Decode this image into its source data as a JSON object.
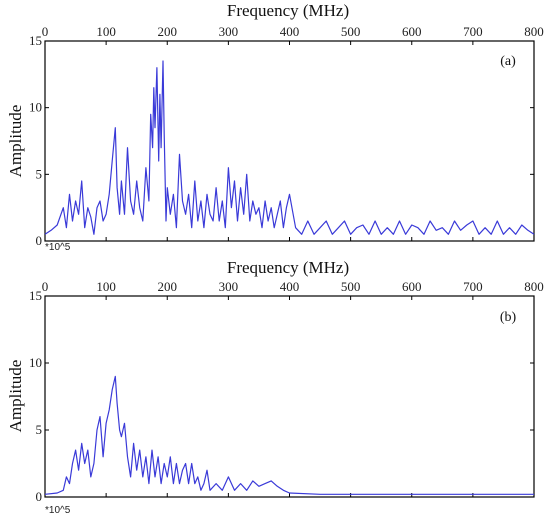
{
  "colors": {
    "line": "#3a3ad8",
    "axis": "#000000"
  },
  "chart_data": [
    {
      "type": "line",
      "panel_label": "(a)",
      "title": "Frequency (MHz)",
      "xlabel": "Frequency (MHz)",
      "ylabel": "Amplitude",
      "y_multiplier": "*10^5",
      "xlim": [
        0,
        800
      ],
      "ylim": [
        0,
        15
      ],
      "xticks": [
        0,
        100,
        200,
        300,
        400,
        500,
        600,
        700,
        800
      ],
      "yticks": [
        0,
        5,
        10,
        15
      ],
      "grid": false,
      "series": [
        {
          "x": [
            0,
            10,
            20,
            30,
            35,
            40,
            45,
            50,
            55,
            60,
            65,
            70,
            75,
            80,
            85,
            90,
            95,
            100,
            105,
            110,
            115,
            118,
            122,
            125,
            130,
            135,
            140,
            145,
            150,
            155,
            160,
            165,
            170,
            173,
            176,
            178,
            180,
            183,
            186,
            188,
            190,
            193,
            195,
            198,
            200,
            205,
            210,
            215,
            220,
            225,
            230,
            235,
            240,
            245,
            250,
            255,
            260,
            265,
            270,
            275,
            280,
            285,
            290,
            295,
            300,
            305,
            310,
            315,
            320,
            325,
            330,
            335,
            340,
            345,
            350,
            355,
            360,
            365,
            370,
            375,
            380,
            385,
            390,
            395,
            400,
            410,
            420,
            430,
            440,
            450,
            460,
            470,
            480,
            490,
            500,
            510,
            520,
            530,
            540,
            550,
            560,
            570,
            580,
            590,
            600,
            610,
            620,
            630,
            640,
            650,
            660,
            670,
            680,
            690,
            700,
            710,
            720,
            730,
            740,
            750,
            760,
            770,
            780,
            790,
            800
          ],
          "y": [
            0.5,
            0.8,
            1.2,
            2.5,
            1.0,
            3.5,
            1.5,
            3.0,
            2.0,
            4.5,
            1.0,
            2.5,
            1.8,
            0.5,
            2.5,
            3.0,
            1.5,
            2.0,
            3.5,
            6.0,
            8.5,
            4.0,
            2.0,
            4.5,
            2.0,
            7.0,
            3.0,
            2.0,
            4.5,
            2.5,
            1.5,
            5.5,
            3.0,
            9.5,
            7.0,
            11.5,
            8.5,
            13.0,
            6.0,
            11.0,
            7.0,
            13.5,
            8.0,
            1.5,
            4.0,
            2.0,
            3.5,
            1.0,
            6.5,
            3.0,
            2.0,
            3.5,
            1.0,
            4.5,
            1.5,
            3.0,
            1.0,
            3.5,
            2.0,
            1.5,
            4.0,
            1.5,
            3.0,
            1.0,
            5.5,
            2.5,
            4.5,
            1.5,
            4.0,
            2.0,
            5.0,
            1.5,
            3.0,
            2.0,
            2.5,
            1.0,
            3.0,
            1.5,
            2.5,
            1.0,
            2.0,
            3.0,
            1.0,
            2.5,
            3.5,
            1.0,
            0.5,
            1.5,
            0.5,
            1.0,
            1.5,
            0.5,
            1.0,
            1.5,
            0.5,
            1.0,
            1.2,
            0.5,
            1.5,
            0.5,
            1.0,
            0.5,
            1.5,
            0.5,
            1.2,
            1.0,
            0.5,
            1.5,
            0.8,
            1.0,
            0.5,
            1.5,
            0.8,
            1.2,
            1.5,
            0.5,
            1.0,
            0.5,
            1.5,
            0.5,
            1.0,
            0.5,
            1.2,
            0.8,
            0.5
          ]
        }
      ]
    },
    {
      "type": "line",
      "panel_label": "(b)",
      "title": "Frequency (MHz)",
      "xlabel": "Frequency (MHz)",
      "ylabel": "Amplitude",
      "y_multiplier": "*10^5",
      "xlim": [
        0,
        800
      ],
      "ylim": [
        0,
        15
      ],
      "xticks": [
        0,
        100,
        200,
        300,
        400,
        500,
        600,
        700,
        800
      ],
      "yticks": [
        0,
        5,
        10,
        15
      ],
      "grid": false,
      "series": [
        {
          "x": [
            0,
            20,
            30,
            35,
            40,
            45,
            50,
            55,
            60,
            65,
            70,
            75,
            80,
            85,
            90,
            95,
            100,
            105,
            110,
            115,
            118,
            122,
            125,
            130,
            135,
            140,
            145,
            150,
            155,
            160,
            165,
            170,
            175,
            180,
            185,
            190,
            195,
            200,
            205,
            210,
            215,
            220,
            225,
            230,
            235,
            240,
            245,
            250,
            255,
            260,
            265,
            270,
            280,
            290,
            300,
            310,
            320,
            330,
            340,
            350,
            360,
            370,
            380,
            390,
            400,
            450,
            500,
            550,
            600,
            650,
            700,
            750,
            800
          ],
          "y": [
            0.2,
            0.3,
            0.5,
            1.5,
            1.0,
            2.5,
            3.5,
            2.0,
            4.0,
            2.5,
            3.5,
            1.5,
            2.5,
            5.0,
            6.0,
            3.0,
            5.5,
            6.5,
            8.0,
            9.0,
            7.0,
            5.0,
            4.5,
            5.5,
            3.0,
            1.5,
            4.0,
            2.0,
            3.5,
            1.5,
            3.0,
            1.0,
            3.5,
            1.5,
            3.0,
            1.0,
            2.5,
            1.5,
            3.0,
            1.0,
            2.5,
            1.0,
            2.0,
            2.5,
            1.0,
            2.5,
            1.0,
            1.5,
            0.5,
            1.0,
            2.0,
            0.5,
            1.0,
            0.5,
            1.5,
            0.5,
            1.0,
            0.5,
            1.2,
            0.8,
            1.0,
            1.2,
            0.8,
            0.5,
            0.3,
            0.2,
            0.2,
            0.2,
            0.2,
            0.2,
            0.2,
            0.2,
            0.2
          ]
        }
      ]
    }
  ]
}
